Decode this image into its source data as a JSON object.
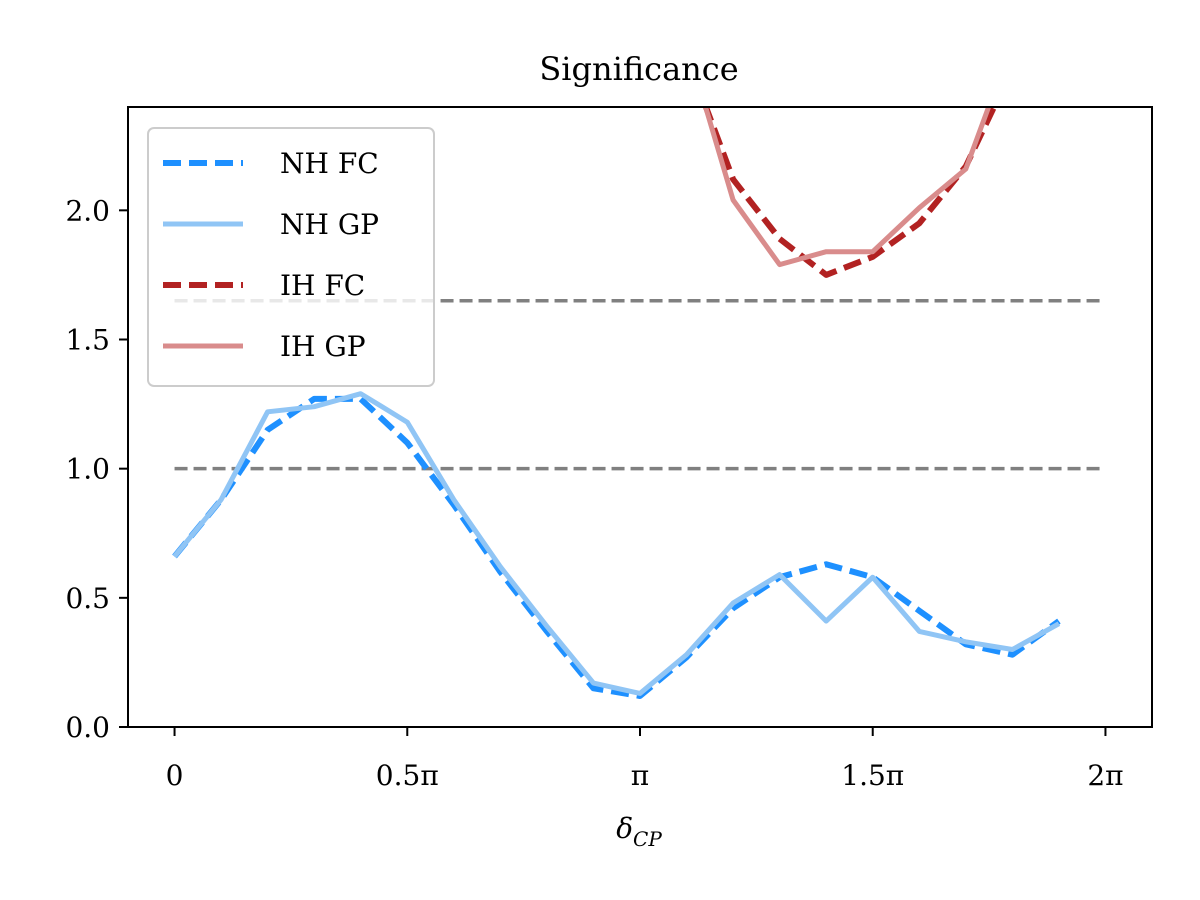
{
  "chart_data": {
    "type": "line",
    "title": "Significance",
    "xlabel": "δ",
    "xlabel_subscript": "CP",
    "ylabel": "",
    "xlim": [
      -0.1,
      2.1
    ],
    "ylim": [
      0.0,
      2.4
    ],
    "xticks": [
      {
        "value": 0,
        "label": "0"
      },
      {
        "value": 0.5,
        "label": "0.5π"
      },
      {
        "value": 1.0,
        "label": "π"
      },
      {
        "value": 1.5,
        "label": "1.5π"
      },
      {
        "value": 2.0,
        "label": "2π"
      }
    ],
    "yticks": [
      {
        "value": 0.0,
        "label": "0.0"
      },
      {
        "value": 0.5,
        "label": "0.5"
      },
      {
        "value": 1.0,
        "label": "1.0"
      },
      {
        "value": 1.5,
        "label": "1.5"
      },
      {
        "value": 2.0,
        "label": "2.0"
      }
    ],
    "grid": false,
    "legend_position": "upper-left",
    "x_units": "multiples of π",
    "series": [
      {
        "name": "NH FC",
        "color": "#1e90ff",
        "style": "dashed",
        "x": [
          0,
          0.1,
          0.2,
          0.3,
          0.4,
          0.5,
          0.6,
          0.7,
          0.8,
          0.9,
          1.0,
          1.1,
          1.2,
          1.3,
          1.4,
          1.5,
          1.6,
          1.7,
          1.8,
          1.9
        ],
        "y": [
          0.66,
          0.88,
          1.15,
          1.27,
          1.27,
          1.1,
          0.86,
          0.6,
          0.37,
          0.15,
          0.12,
          0.27,
          0.46,
          0.58,
          0.63,
          0.58,
          0.45,
          0.32,
          0.28,
          0.41
        ]
      },
      {
        "name": "NH GP",
        "color": "#90c5f5",
        "style": "solid",
        "x": [
          0,
          0.1,
          0.2,
          0.3,
          0.4,
          0.5,
          0.6,
          0.7,
          0.8,
          0.9,
          1.0,
          1.1,
          1.2,
          1.3,
          1.4,
          1.5,
          1.6,
          1.7,
          1.8,
          1.9
        ],
        "y": [
          0.66,
          0.88,
          1.22,
          1.24,
          1.29,
          1.18,
          0.88,
          0.62,
          0.39,
          0.17,
          0.13,
          0.28,
          0.48,
          0.59,
          0.41,
          0.58,
          0.37,
          0.33,
          0.3,
          0.4
        ]
      },
      {
        "name": "IH FC",
        "color": "#b22222",
        "style": "dashed",
        "x": [
          1.1,
          1.2,
          1.3,
          1.4,
          1.5,
          1.6,
          1.7,
          1.8
        ],
        "y": [
          2.6,
          2.12,
          1.89,
          1.75,
          1.82,
          1.95,
          2.17,
          2.55
        ]
      },
      {
        "name": "IH GP",
        "color": "#d98c8c",
        "style": "solid",
        "x": [
          1.1,
          1.2,
          1.3,
          1.4,
          1.5,
          1.6,
          1.7,
          1.8
        ],
        "y": [
          2.65,
          2.04,
          1.79,
          1.84,
          1.84,
          2.01,
          2.16,
          2.65
        ]
      }
    ],
    "reference_lines": [
      {
        "y": 1.0,
        "x_range": [
          0,
          2.0
        ],
        "color": "#808080",
        "style": "dashed"
      },
      {
        "y": 1.65,
        "x_range": [
          0,
          2.0
        ],
        "color": "#808080",
        "style": "dashed"
      }
    ]
  }
}
